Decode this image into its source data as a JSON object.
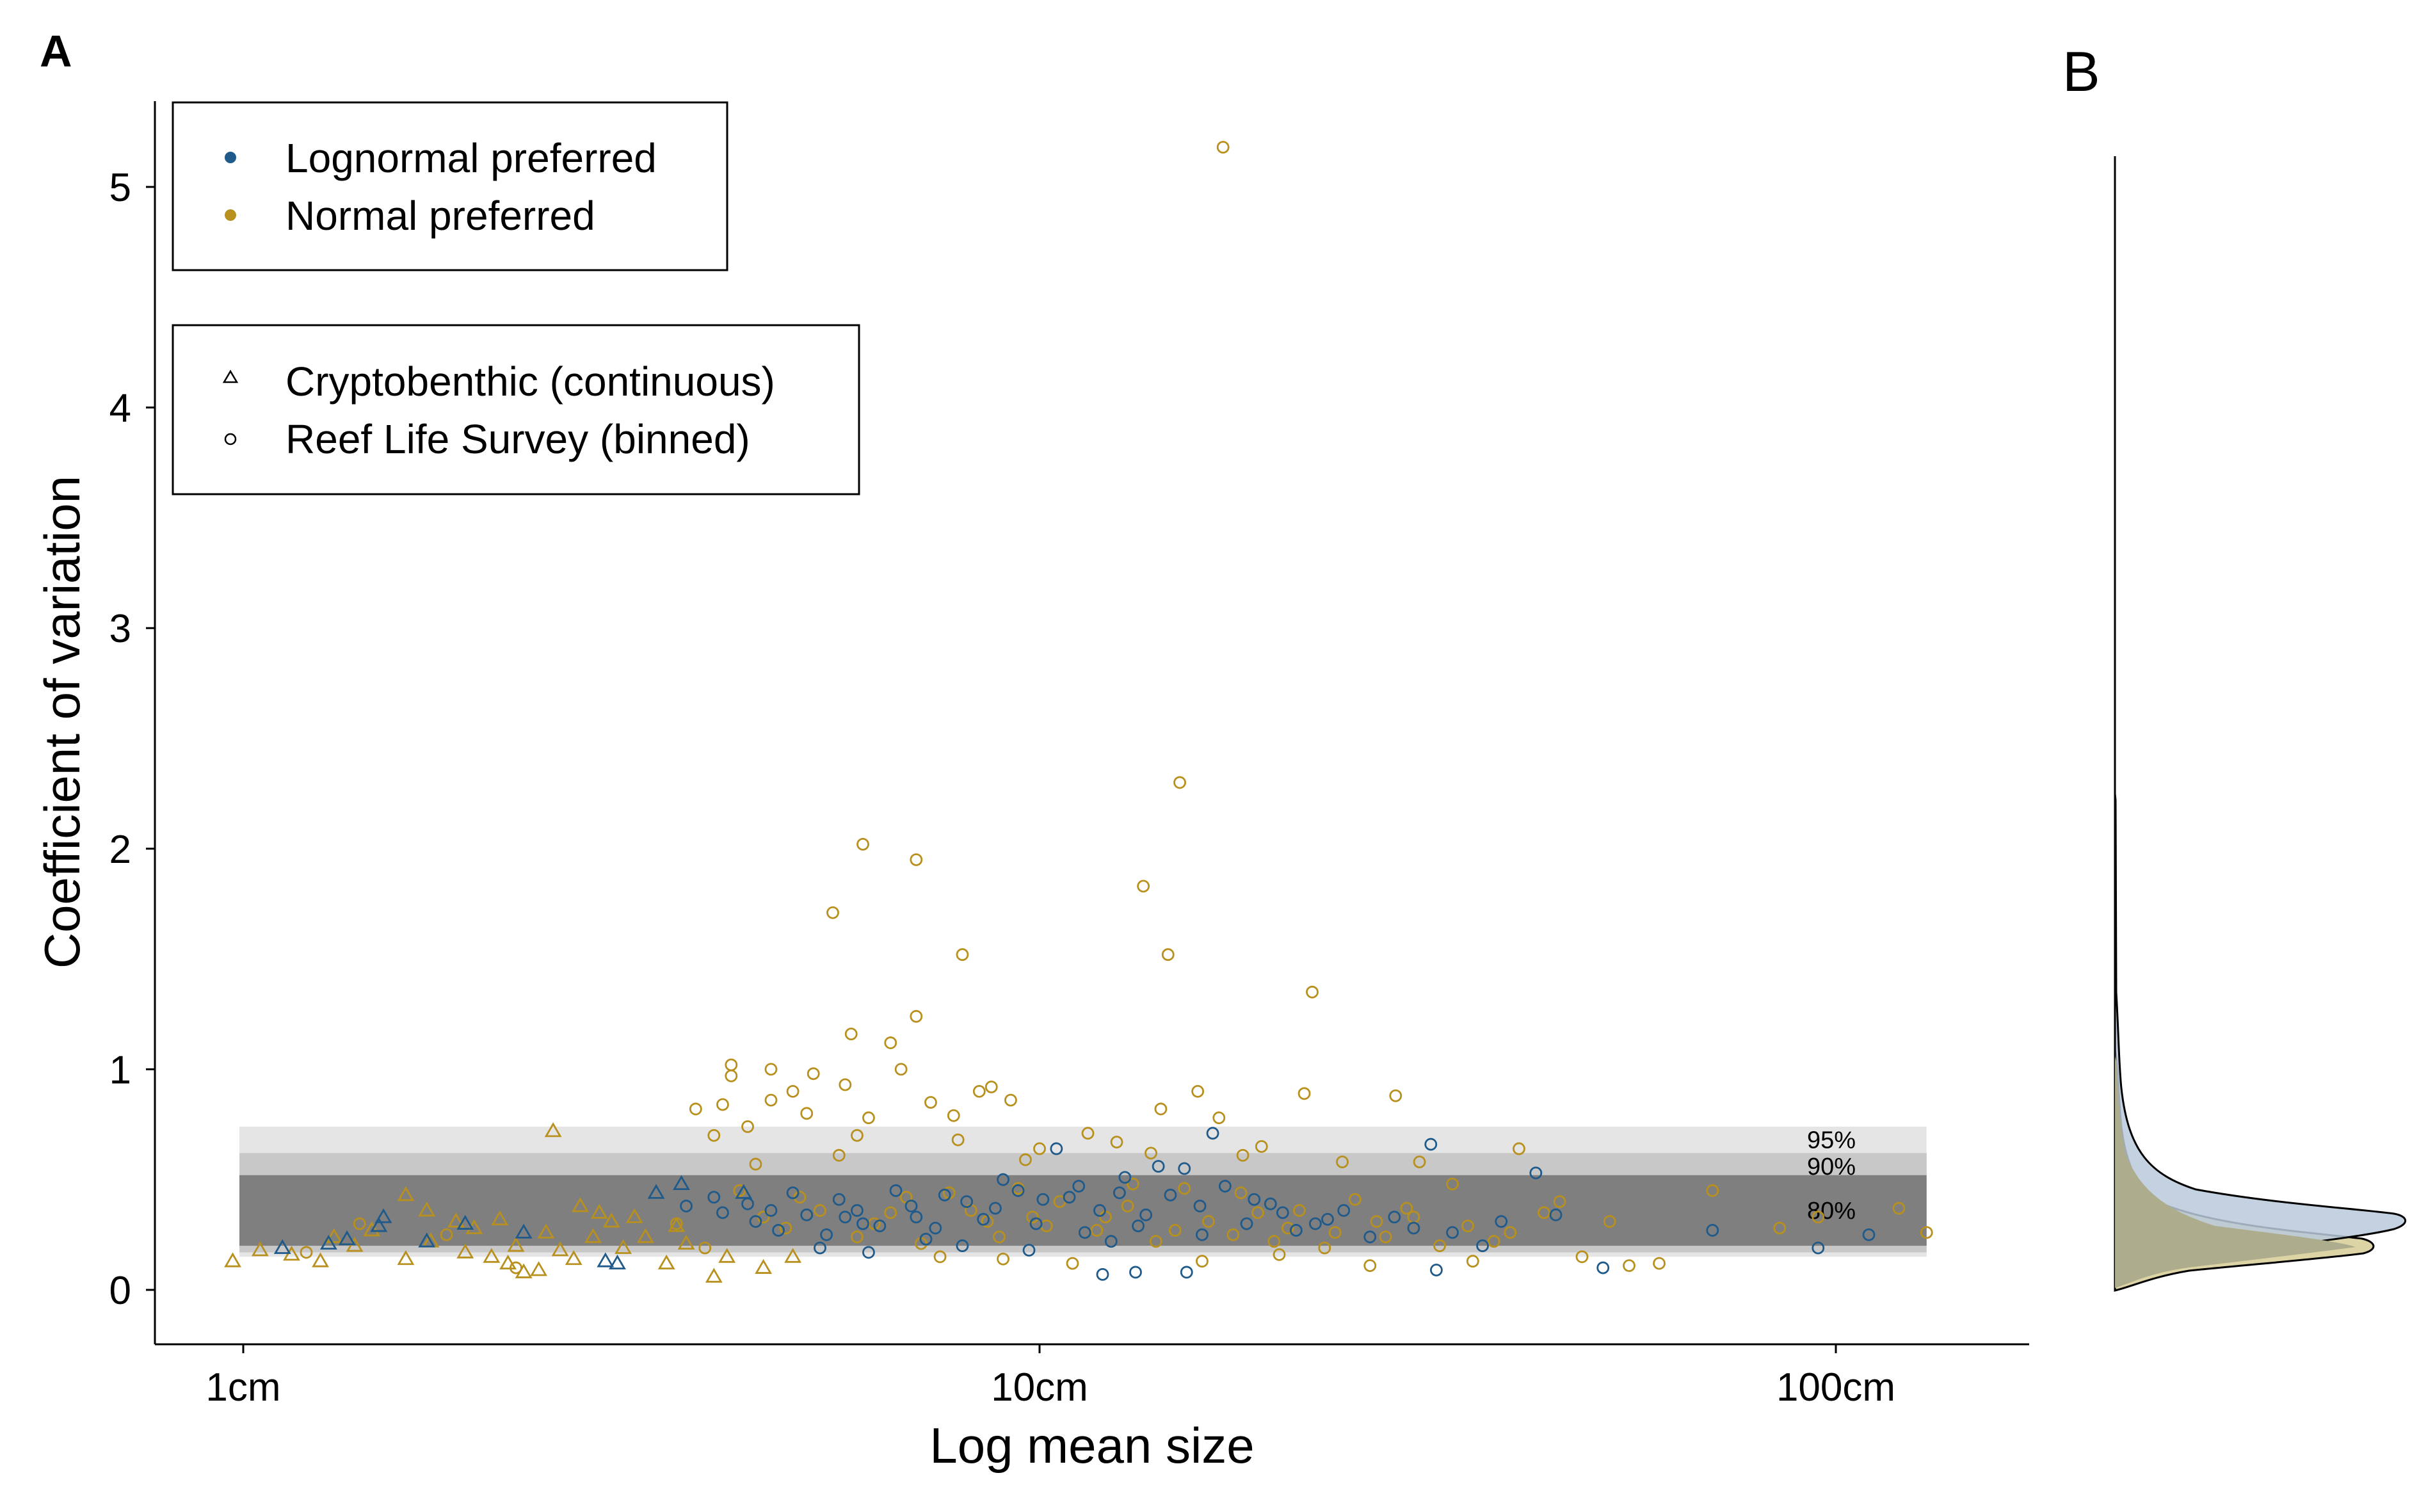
{
  "colors": {
    "lognormal": "#1f5a8a",
    "normal": "#b8901e",
    "band_95": "#e5e5e5",
    "band_90": "#c8c8c8",
    "band_80": "#7f7f7f",
    "density_lognormal_fill": "#b9c9da",
    "density_normal_fill": "#ddd4a5",
    "density_overlap_fill": "#adad8d"
  },
  "panel_a": {
    "label": "A"
  },
  "panel_b": {
    "label": "B"
  },
  "legend_color": {
    "items": [
      {
        "label": "Lognormal preferred",
        "color": "#1f5a8a",
        "symbol": "filled-dot"
      },
      {
        "label": "Normal preferred",
        "color": "#b8901e",
        "symbol": "filled-dot"
      }
    ]
  },
  "legend_shape": {
    "items": [
      {
        "label": "Cryptobenthic (continuous)",
        "symbol": "triangle-icon"
      },
      {
        "label": "Reef Life Survey (binned)",
        "symbol": "circle-icon"
      }
    ]
  },
  "chart_data": {
    "type": "scatter",
    "xlabel": "Log mean size",
    "ylabel": "Coefficient of variation",
    "x_scale": "log",
    "x_unit": "cm",
    "xlim": [
      0.8,
      150
    ],
    "ylim": [
      -0.2,
      5.45
    ],
    "x_ticks": [
      {
        "value": 1,
        "label": "1cm"
      },
      {
        "value": 10,
        "label": "10cm"
      },
      {
        "value": 100,
        "label": "100cm"
      }
    ],
    "y_ticks": [
      {
        "value": 0,
        "label": "0"
      },
      {
        "value": 1,
        "label": "1"
      },
      {
        "value": 2,
        "label": "2"
      },
      {
        "value": 3,
        "label": "3"
      },
      {
        "value": 4,
        "label": "4"
      },
      {
        "value": 5,
        "label": "5"
      }
    ],
    "grid": false,
    "legend_position": "top-left",
    "bands": [
      {
        "label": "95%",
        "ymin": 0.15,
        "ymax": 0.74,
        "x_from": 1,
        "x_to": 130
      },
      {
        "label": "90%",
        "ymin": 0.17,
        "ymax": 0.62,
        "x_from": 1,
        "x_to": 130
      },
      {
        "label": "80%",
        "ymin": 0.2,
        "ymax": 0.52,
        "x_from": 1,
        "x_to": 130
      }
    ],
    "series": [
      {
        "name": "Normal preferred",
        "marker": "circle",
        "points": [
          [
            17,
            5.18
          ],
          [
            15,
            2.3
          ],
          [
            6,
            2.02
          ],
          [
            7,
            1.95
          ],
          [
            5.5,
            1.71
          ],
          [
            13.5,
            1.83
          ],
          [
            8,
            1.52
          ],
          [
            14.5,
            1.52
          ],
          [
            22,
            1.35
          ],
          [
            7,
            1.24
          ],
          [
            5.8,
            1.16
          ],
          [
            6.5,
            1.12
          ],
          [
            4.1,
            1.02
          ],
          [
            4.6,
            1.0
          ],
          [
            5.2,
            0.98
          ],
          [
            6.7,
            1.0
          ],
          [
            4.1,
            0.97
          ],
          [
            4.9,
            0.9
          ],
          [
            5.7,
            0.93
          ],
          [
            8.7,
            0.92
          ],
          [
            8.4,
            0.9
          ],
          [
            3.7,
            0.82
          ],
          [
            4.0,
            0.84
          ],
          [
            4.6,
            0.86
          ],
          [
            5.1,
            0.8
          ],
          [
            6.1,
            0.78
          ],
          [
            7.3,
            0.85
          ],
          [
            7.8,
            0.79
          ],
          [
            9.2,
            0.86
          ],
          [
            11.5,
            0.71
          ],
          [
            14.2,
            0.82
          ],
          [
            15.8,
            0.9
          ],
          [
            16.8,
            0.78
          ],
          [
            21.5,
            0.89
          ],
          [
            28,
            0.88
          ],
          [
            12.5,
            0.67
          ],
          [
            10,
            0.64
          ],
          [
            3.9,
            0.7
          ],
          [
            4.3,
            0.74
          ],
          [
            5.9,
            0.7
          ],
          [
            7.9,
            0.68
          ],
          [
            13.8,
            0.62
          ],
          [
            19,
            0.65
          ],
          [
            24,
            0.58
          ],
          [
            30,
            0.58
          ],
          [
            40,
            0.64
          ],
          [
            4.4,
            0.57
          ],
          [
            5.6,
            0.61
          ],
          [
            9.6,
            0.59
          ],
          [
            18,
            0.61
          ],
          [
            33,
            0.48
          ],
          [
            45,
            0.4
          ],
          [
            52,
            0.31
          ],
          [
            70,
            0.45
          ],
          [
            85,
            0.28
          ],
          [
            95,
            0.33
          ],
          [
            120,
            0.37
          ],
          [
            130,
            0.26
          ],
          [
            60,
            0.12
          ],
          [
            55,
            0.11
          ],
          [
            48,
            0.15
          ],
          [
            35,
            0.13
          ],
          [
            26,
            0.11
          ],
          [
            11,
            0.12
          ],
          [
            9,
            0.14
          ],
          [
            7.5,
            0.15
          ],
          [
            16,
            0.13
          ],
          [
            20,
            0.16
          ],
          [
            6.2,
            0.3
          ],
          [
            6.8,
            0.42
          ],
          [
            7.1,
            0.21
          ],
          [
            8.2,
            0.36
          ],
          [
            8.9,
            0.24
          ],
          [
            9.8,
            0.33
          ],
          [
            10.6,
            0.4
          ],
          [
            11.8,
            0.27
          ],
          [
            12.9,
            0.38
          ],
          [
            14.0,
            0.22
          ],
          [
            15.2,
            0.46
          ],
          [
            16.3,
            0.31
          ],
          [
            17.5,
            0.25
          ],
          [
            18.8,
            0.35
          ],
          [
            20.5,
            0.28
          ],
          [
            22.8,
            0.19
          ],
          [
            24.9,
            0.41
          ],
          [
            27.2,
            0.24
          ],
          [
            29.5,
            0.33
          ],
          [
            31.8,
            0.2
          ],
          [
            34.5,
            0.29
          ],
          [
            37.2,
            0.22
          ],
          [
            4.2,
            0.45
          ],
          [
            4.8,
            0.28
          ],
          [
            5.3,
            0.36
          ],
          [
            5.9,
            0.24
          ],
          [
            3.5,
            0.3
          ],
          [
            3.8,
            0.19
          ],
          [
            1.2,
            0.17
          ],
          [
            1.4,
            0.3
          ],
          [
            1.8,
            0.25
          ],
          [
            2.2,
            0.1
          ],
          [
            26.5,
            0.31
          ],
          [
            23.5,
            0.26
          ],
          [
            21.2,
            0.36
          ],
          [
            19.7,
            0.22
          ],
          [
            13.1,
            0.48
          ],
          [
            10.2,
            0.29
          ],
          [
            9.4,
            0.46
          ],
          [
            8.6,
            0.31
          ],
          [
            7.7,
            0.44
          ],
          [
            6.5,
            0.35
          ],
          [
            5.0,
            0.42
          ],
          [
            4.5,
            0.33
          ],
          [
            12.1,
            0.33
          ],
          [
            14.8,
            0.27
          ],
          [
            17.9,
            0.44
          ],
          [
            28.9,
            0.37
          ],
          [
            39,
            0.26
          ],
          [
            43,
            0.35
          ]
        ]
      },
      {
        "name": "Lognormal preferred",
        "marker": "circle",
        "points": [
          [
            15.2,
            0.55
          ],
          [
            16.5,
            0.71
          ],
          [
            31,
            0.66
          ],
          [
            42,
            0.53
          ],
          [
            13.2,
            0.08
          ],
          [
            12.0,
            0.07
          ],
          [
            15.3,
            0.08
          ],
          [
            31.5,
            0.09
          ],
          [
            51,
            0.1
          ],
          [
            95,
            0.19
          ],
          [
            110,
            0.25
          ],
          [
            70,
            0.27
          ],
          [
            10.5,
            0.64
          ],
          [
            14.1,
            0.56
          ],
          [
            12.8,
            0.51
          ],
          [
            11.2,
            0.47
          ],
          [
            9.4,
            0.45
          ],
          [
            8.1,
            0.4
          ],
          [
            6.9,
            0.38
          ],
          [
            5.9,
            0.36
          ],
          [
            5.1,
            0.34
          ],
          [
            4.4,
            0.31
          ],
          [
            4.0,
            0.35
          ],
          [
            4.7,
            0.27
          ],
          [
            5.4,
            0.25
          ],
          [
            6.3,
            0.29
          ],
          [
            7.2,
            0.23
          ],
          [
            8.5,
            0.32
          ],
          [
            9.9,
            0.3
          ],
          [
            11.4,
            0.26
          ],
          [
            13.6,
            0.34
          ],
          [
            15.9,
            0.38
          ],
          [
            18.2,
            0.3
          ],
          [
            21.0,
            0.27
          ],
          [
            24.1,
            0.36
          ],
          [
            27.9,
            0.33
          ],
          [
            33.0,
            0.26
          ],
          [
            38.0,
            0.31
          ],
          [
            44.5,
            0.34
          ],
          [
            3.9,
            0.42
          ],
          [
            4.3,
            0.39
          ],
          [
            4.9,
            0.44
          ],
          [
            5.6,
            0.41
          ],
          [
            6.6,
            0.45
          ],
          [
            7.6,
            0.43
          ],
          [
            9.0,
            0.5
          ],
          [
            10.9,
            0.42
          ],
          [
            12.3,
            0.22
          ],
          [
            14.6,
            0.43
          ],
          [
            17.1,
            0.47
          ],
          [
            19.5,
            0.39
          ],
          [
            23.0,
            0.32
          ],
          [
            26.0,
            0.24
          ],
          [
            8.0,
            0.2
          ],
          [
            9.7,
            0.18
          ],
          [
            6.1,
            0.17
          ],
          [
            5.3,
            0.19
          ],
          [
            36.0,
            0.2
          ],
          [
            3.6,
            0.38
          ],
          [
            6.0,
            0.3
          ],
          [
            7.0,
            0.33
          ],
          [
            8.8,
            0.37
          ],
          [
            10.1,
            0.41
          ],
          [
            11.9,
            0.36
          ],
          [
            13.3,
            0.29
          ],
          [
            16.0,
            0.25
          ],
          [
            20.2,
            0.35
          ],
          [
            4.6,
            0.36
          ],
          [
            5.7,
            0.33
          ],
          [
            7.4,
            0.28
          ],
          [
            12.6,
            0.44
          ],
          [
            18.6,
            0.41
          ],
          [
            22.2,
            0.3
          ],
          [
            29.5,
            0.28
          ]
        ]
      },
      {
        "name": "Normal preferred",
        "marker": "triangle",
        "points": [
          [
            0.97,
            0.13
          ],
          [
            1.15,
            0.16
          ],
          [
            1.25,
            0.13
          ],
          [
            1.38,
            0.2
          ],
          [
            1.45,
            0.27
          ],
          [
            1.6,
            0.14
          ],
          [
            1.72,
            0.22
          ],
          [
            1.85,
            0.31
          ],
          [
            1.9,
            0.17
          ],
          [
            2.05,
            0.15
          ],
          [
            2.15,
            0.12
          ],
          [
            2.25,
            0.08
          ],
          [
            2.35,
            0.09
          ],
          [
            2.45,
            0.72
          ],
          [
            2.5,
            0.18
          ],
          [
            2.65,
            0.38
          ],
          [
            2.75,
            0.24
          ],
          [
            2.9,
            0.31
          ],
          [
            3.1,
            0.33
          ],
          [
            3.2,
            0.24
          ],
          [
            3.4,
            0.12
          ],
          [
            3.6,
            0.21
          ],
          [
            3.9,
            0.06
          ],
          [
            4.05,
            0.15
          ],
          [
            4.5,
            0.1
          ],
          [
            4.9,
            0.15
          ],
          [
            2.2,
            0.2
          ],
          [
            1.95,
            0.28
          ],
          [
            1.6,
            0.43
          ],
          [
            1.3,
            0.24
          ],
          [
            1.05,
            0.18
          ],
          [
            2.8,
            0.35
          ],
          [
            3.5,
            0.29
          ],
          [
            2.4,
            0.26
          ],
          [
            2.6,
            0.14
          ],
          [
            3.0,
            0.19
          ],
          [
            1.7,
            0.36
          ],
          [
            2.1,
            0.32
          ]
        ]
      },
      {
        "name": "Lognormal preferred",
        "marker": "triangle",
        "points": [
          [
            1.12,
            0.19
          ],
          [
            1.28,
            0.21
          ],
          [
            1.5,
            0.33
          ],
          [
            1.48,
            0.29
          ],
          [
            1.7,
            0.22
          ],
          [
            1.9,
            0.3
          ],
          [
            2.25,
            0.26
          ],
          [
            2.85,
            0.13
          ],
          [
            3.3,
            0.44
          ],
          [
            3.55,
            0.48
          ],
          [
            4.25,
            0.44
          ],
          [
            2.95,
            0.12
          ],
          [
            1.35,
            0.23
          ]
        ]
      }
    ]
  }
}
